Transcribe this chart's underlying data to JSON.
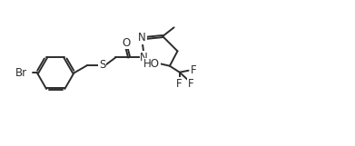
{
  "bg_color": "#ffffff",
  "line_color": "#2d2d2d",
  "line_width": 1.4,
  "font_size": 8.5,
  "figsize": [
    3.91,
    1.61
  ],
  "dpi": 100,
  "xlim": [
    0,
    10
  ],
  "ylim": [
    0,
    4.1
  ]
}
